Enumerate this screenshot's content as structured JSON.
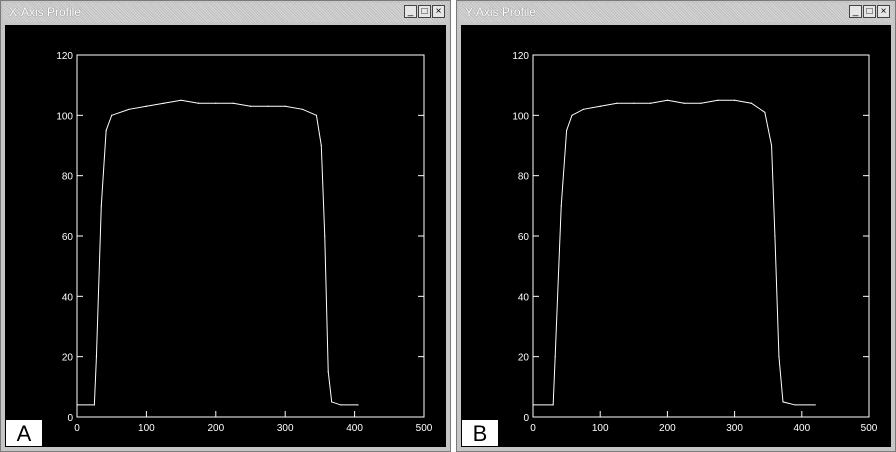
{
  "panels": [
    {
      "letter": "A",
      "window_title": "X-Axis Profile",
      "buttons": {
        "minimize": "_",
        "maximize": "□",
        "close": "×"
      }
    },
    {
      "letter": "B",
      "window_title": "Y-Axis Profile",
      "buttons": {
        "minimize": "_",
        "maximize": "□",
        "close": "×"
      }
    }
  ],
  "colors": {
    "plot_bg": "#000000",
    "plot_fg": "#ffffff"
  },
  "chart_data": [
    {
      "type": "line",
      "title": "X-Axis Profile",
      "xlim": [
        0,
        500
      ],
      "ylim": [
        0,
        120
      ],
      "xticks": [
        "0",
        "100",
        "200",
        "300",
        "400",
        "500"
      ],
      "yticks": [
        "0",
        "20",
        "40",
        "60",
        "80",
        "100",
        "120"
      ],
      "grid": false,
      "series": [
        {
          "x": [
            0,
            25,
            28,
            35,
            42,
            50,
            75,
            100,
            125,
            150,
            175,
            200,
            225,
            250,
            275,
            300,
            325,
            345,
            352,
            357,
            362,
            367,
            380,
            405
          ],
          "y": [
            4,
            4,
            20,
            70,
            95,
            100,
            102,
            103,
            104,
            105,
            104,
            104,
            104,
            103,
            103,
            103,
            102,
            100,
            90,
            60,
            15,
            5,
            4,
            4
          ]
        }
      ]
    },
    {
      "type": "line",
      "title": "Y-Axis Profile",
      "xlim": [
        0,
        500
      ],
      "ylim": [
        0,
        120
      ],
      "xticks": [
        "0",
        "100",
        "200",
        "300",
        "400",
        "500"
      ],
      "yticks": [
        "0",
        "20",
        "40",
        "60",
        "80",
        "100",
        "120"
      ],
      "grid": false,
      "series": [
        {
          "x": [
            0,
            30,
            33,
            42,
            50,
            58,
            75,
            100,
            125,
            150,
            175,
            200,
            225,
            250,
            275,
            300,
            325,
            345,
            355,
            360,
            366,
            372,
            390,
            420
          ],
          "y": [
            4,
            4,
            20,
            70,
            95,
            100,
            102,
            103,
            104,
            104,
            104,
            105,
            104,
            104,
            105,
            105,
            104,
            101,
            90,
            60,
            20,
            5,
            4,
            4
          ]
        }
      ]
    }
  ]
}
